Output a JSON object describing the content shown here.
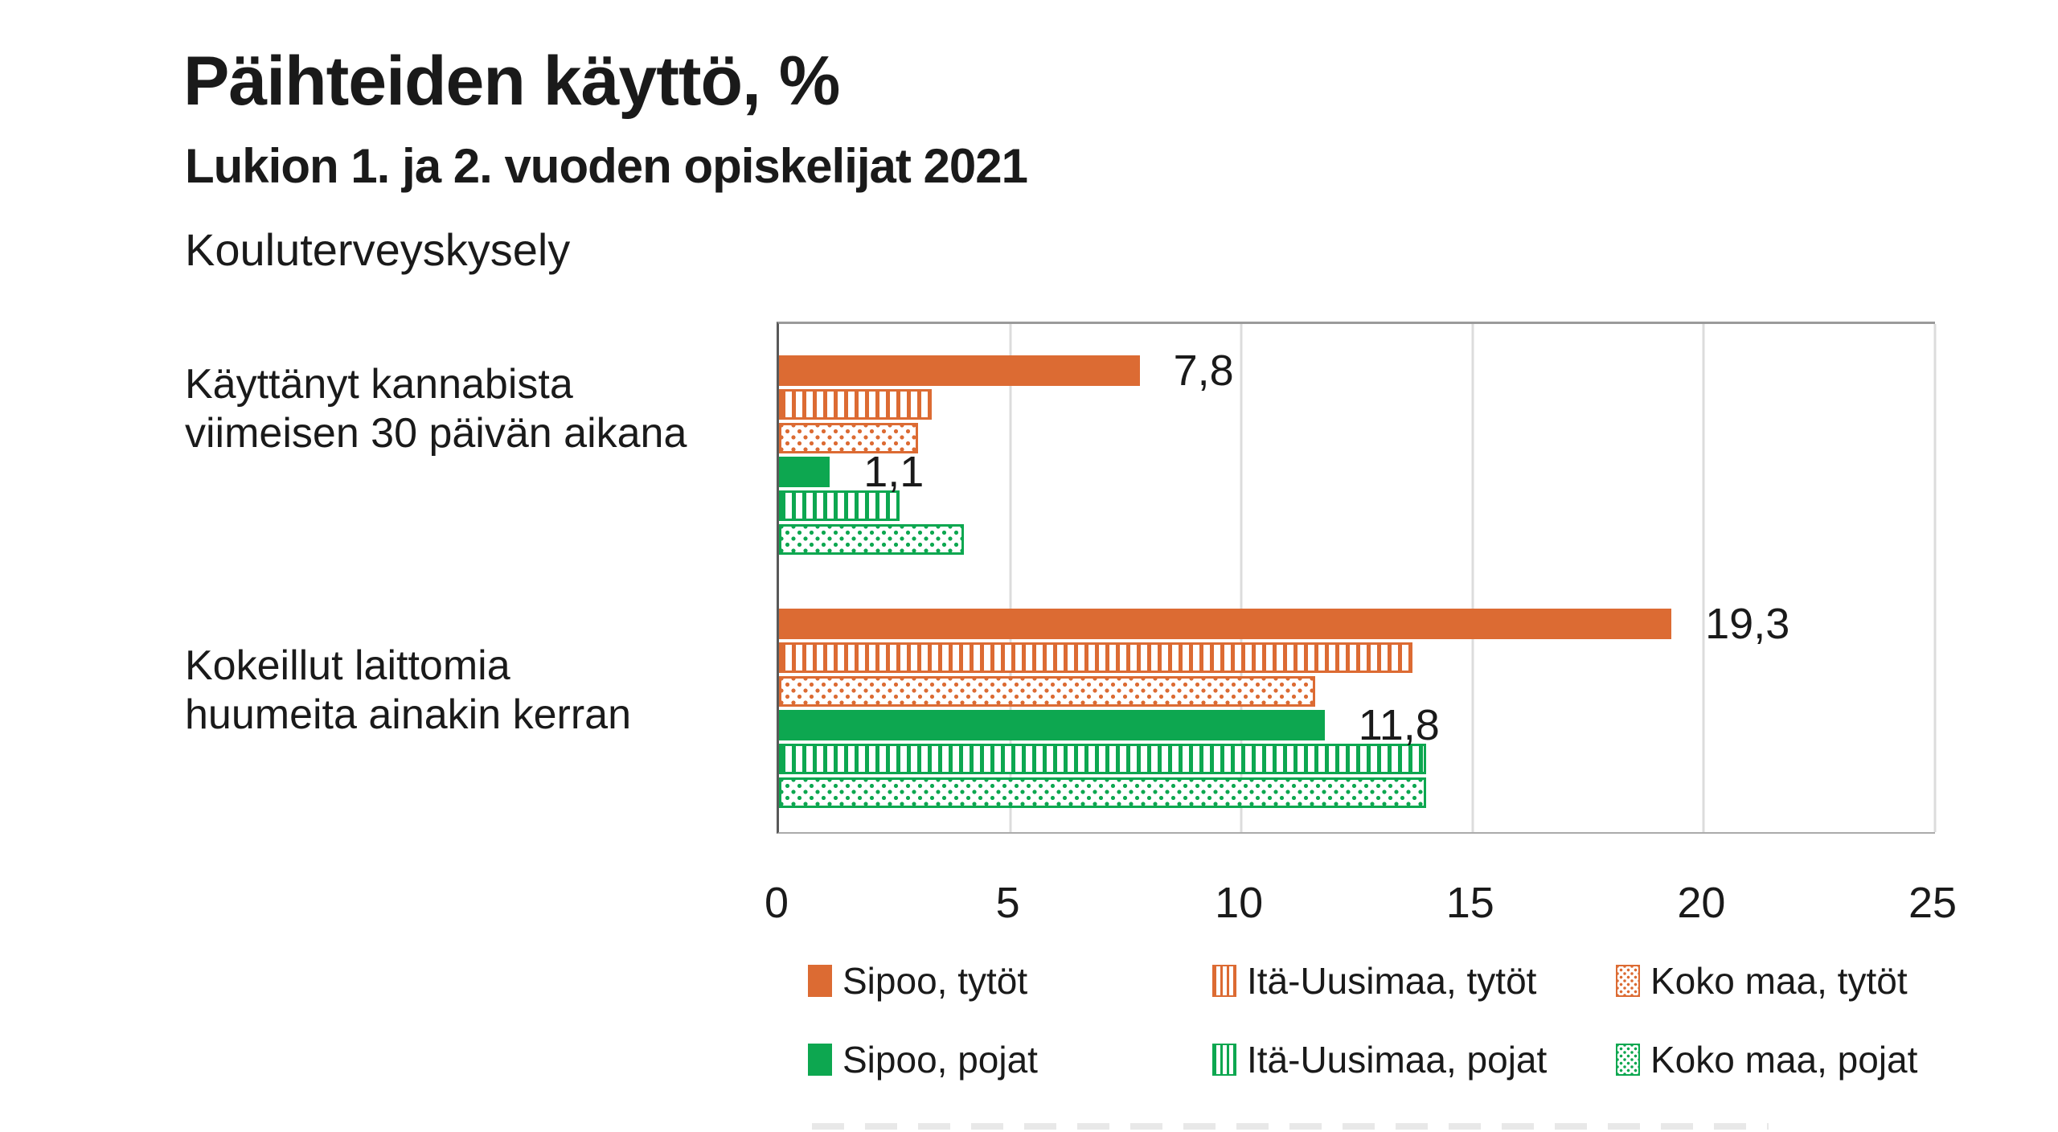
{
  "header": {
    "title": "Päihteiden käyttö, %",
    "subtitle": "Lukion 1. ja 2. vuoden opiskelijat 2021",
    "source": "Kouluterveyskysely"
  },
  "chart_data": {
    "type": "bar",
    "orientation": "horizontal",
    "title": "Päihteiden käyttö, %",
    "subtitle": "Lukion 1. ja 2. vuoden opiskelijat 2021",
    "source": "Kouluterveyskysely",
    "categories": [
      "Käyttänyt kannabista viimeisen 30 päivän aikana",
      "Kokeillut laittomia huumeita ainakin kerran"
    ],
    "category_label_lines": [
      {
        "line1": "Käyttänyt kannabista",
        "line2": "viimeisen 30 päivän aikana"
      },
      {
        "line1": "Kokeillut laittomia",
        "line2": "huumeita ainakin kerran"
      }
    ],
    "series": [
      {
        "name": "Sipoo, tytöt",
        "pattern": "solid",
        "color_key": "orange",
        "values": [
          7.8,
          19.3
        ]
      },
      {
        "name": "Itä-Uusimaa, tytöt",
        "pattern": "stripes",
        "color_key": "orange",
        "values": [
          3.3,
          13.7
        ]
      },
      {
        "name": "Koko maa, tytöt",
        "pattern": "dots",
        "color_key": "orange",
        "values": [
          3.0,
          11.6
        ]
      },
      {
        "name": "Sipoo, pojat",
        "pattern": "solid",
        "color_key": "green",
        "values": [
          1.1,
          11.8
        ]
      },
      {
        "name": "Itä-Uusimaa, pojat",
        "pattern": "stripes",
        "color_key": "green",
        "values": [
          2.6,
          14.0
        ]
      },
      {
        "name": "Koko maa, pojat",
        "pattern": "dots",
        "color_key": "green",
        "values": [
          4.0,
          14.0
        ]
      }
    ],
    "data_labels": [
      {
        "series": 0,
        "category": 0,
        "text": "7,8"
      },
      {
        "series": 3,
        "category": 0,
        "text": "1,1"
      },
      {
        "series": 0,
        "category": 1,
        "text": "19,3"
      },
      {
        "series": 3,
        "category": 1,
        "text": "11,8"
      }
    ],
    "xlim": [
      0,
      25
    ],
    "x_ticks": [
      "0",
      "5",
      "10",
      "15",
      "20",
      "25"
    ],
    "grid": true,
    "legend_position": "bottom",
    "colors": {
      "orange": "#DC6B33",
      "green": "#0DA750"
    }
  }
}
